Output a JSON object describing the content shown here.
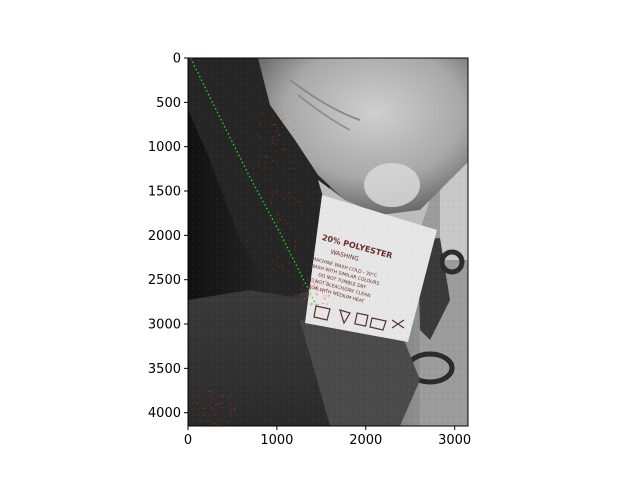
{
  "chart_data": {
    "type": "image",
    "title": "",
    "xlabel": "",
    "ylabel": "",
    "xlim": [
      0,
      3150
    ],
    "ylim": [
      4150,
      0
    ],
    "x_ticks": [
      0,
      1000,
      2000,
      3000
    ],
    "y_ticks": [
      0,
      500,
      1000,
      1500,
      2000,
      2500,
      3000,
      3500,
      4000
    ],
    "grid": false,
    "legend": "none",
    "colors": {
      "edge_overlay": "#00ff00",
      "point_overlay": "#ff2020"
    },
    "edge_line": {
      "points": [
        [
          30,
          0
        ],
        [
          300,
          550
        ],
        [
          700,
          1350
        ],
        [
          1050,
          2000
        ],
        [
          1450,
          2800
        ]
      ]
    },
    "label_text": {
      "line1": "20% POLYESTER",
      "line2": "WASHING",
      "line3": "MACHINE WASH COLD - 30°C",
      "line4": "WASH WITH SIMILAR COLOURS",
      "line5": "DO NOT TUMBLE DRY",
      "line6": "DO NOT BLEACH/DRY CLEAN",
      "line7": "IRON WITH MEDIUM HEAT"
    }
  }
}
